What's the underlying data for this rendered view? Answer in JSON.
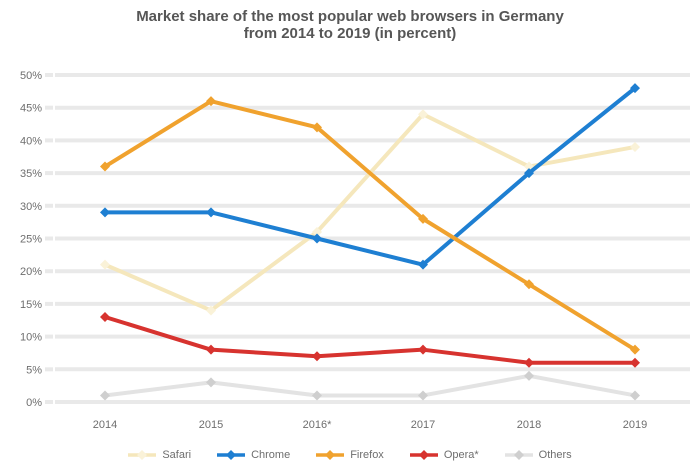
{
  "title": {
    "line1": "Market share of the most popular web browsers in Germany",
    "line2": "from 2014 to 2019 (in percent)"
  },
  "chart_data": {
    "type": "line",
    "categories": [
      "2014",
      "2015",
      "2016*",
      "2017",
      "2018",
      "2019"
    ],
    "series": [
      {
        "name": "Safari",
        "color": "#f5e7bc",
        "marker_color": "#faf2d8",
        "values": [
          21,
          14,
          26,
          44,
          36,
          39
        ]
      },
      {
        "name": "Chrome",
        "color": "#1e7fd2",
        "marker_color": "#1e7fd2",
        "values": [
          29,
          29,
          25,
          21,
          35,
          48
        ]
      },
      {
        "name": "Firefox",
        "color": "#f0a22e",
        "marker_color": "#f0a22e",
        "values": [
          36,
          46,
          42,
          28,
          18,
          8
        ]
      },
      {
        "name": "Opera*",
        "color": "#d7332f",
        "marker_color": "#d7332f",
        "values": [
          13,
          8,
          7,
          8,
          6,
          6
        ]
      },
      {
        "name": "Others",
        "color": "#e3e3e3",
        "marker_color": "#cfcfcf",
        "values": [
          1,
          3,
          1,
          1,
          4,
          1
        ]
      }
    ],
    "ylim": [
      0,
      50
    ],
    "ytick_step": 5,
    "ytick_labels_top_to_bottom": [
      "50%",
      "45%",
      "40%",
      "35%",
      "30%",
      "25%",
      "20%",
      "15%",
      "10%",
      "5%",
      "0%"
    ],
    "grid": true,
    "legend_position": "bottom",
    "marker": "diamond",
    "grid_color": "#e9e9e9",
    "axis_text_color": "#6e6e6e",
    "title_color": "#565656"
  }
}
